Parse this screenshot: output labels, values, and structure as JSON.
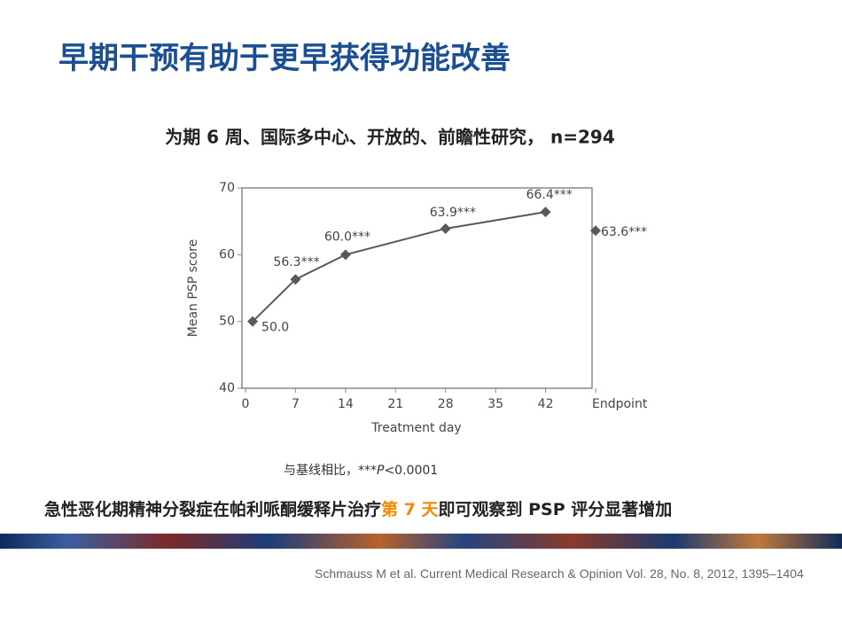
{
  "slide_title": "早期干预有助于更早获得功能改善",
  "chart_data": {
    "type": "line",
    "title": "为期 6 周、国际多中心、开放的、前瞻性研究，  n=294",
    "x_label": "Treatment  day",
    "y_label": "Mean  PSP  score",
    "x": [
      1,
      7,
      14,
      28,
      42,
      49
    ],
    "series": [
      {
        "color": "#595959",
        "values": [
          50.0,
          56.3,
          60.0,
          63.9,
          66.4,
          null
        ],
        "value_labels": [
          "50.0",
          "56.3***",
          "60.0***",
          "63.9***",
          "66.4***",
          null
        ]
      },
      {
        "color": "#595959",
        "values": [
          null,
          null,
          null,
          null,
          null,
          63.6
        ],
        "value_labels": [
          null,
          null,
          null,
          null,
          null,
          "63.6***"
        ]
      }
    ],
    "xlim": [
      0,
      49
    ],
    "xticks": [
      0,
      7,
      14,
      21,
      28,
      35,
      42,
      {
        "value": 49,
        "label": "Endpoint"
      }
    ],
    "ylim": [
      40,
      70
    ],
    "yticks": [
      40,
      50,
      60,
      70
    ]
  },
  "footnote": {
    "prefix": "与基线相比，***",
    "italic": "P",
    "suffix": "<0.0001"
  },
  "conclusion": {
    "before": "急性恶化期精神分裂症在帕利哌酮缓释片治疗",
    "highlight": "第 7 天",
    "after": "即可观察到 PSP 评分显著增加"
  },
  "citation": "Schmauss M et al. Current Medical Research & Opinion Vol. 28, No. 8, 2012, 1395–1404"
}
